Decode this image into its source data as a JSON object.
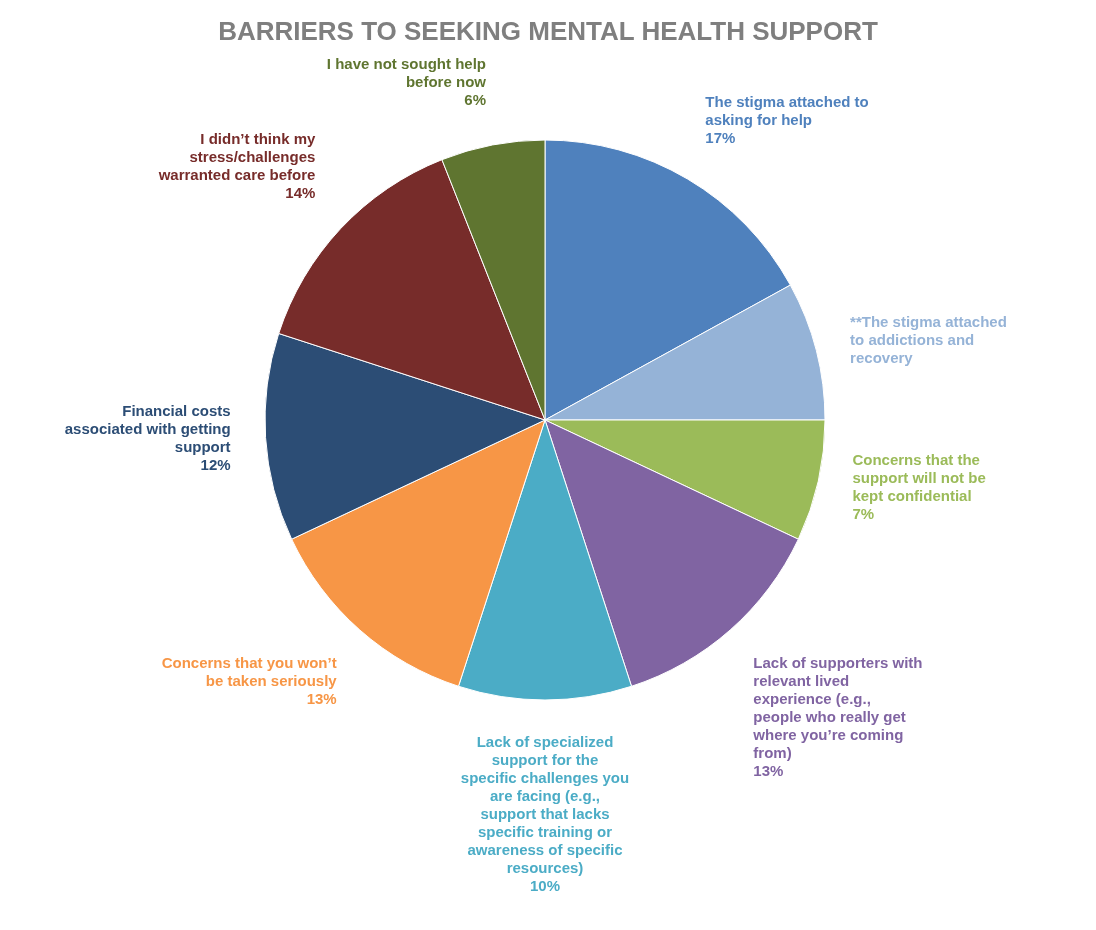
{
  "chart_data": {
    "type": "pie",
    "title": "BARRIERS TO SEEKING MENTAL HEALTH SUPPORT",
    "categories": [
      "The stigma attached to asking for help",
      "**The stigma attached to addictions and recovery",
      "Concerns that the support will not be kept confidential",
      "Lack of supporters with relevant lived experience (e.g., people who really get where you’re coming from)",
      "Lack of specialized support for the specific challenges you are facing (e.g., support that lacks specific training or awareness of specific resources)",
      "Concerns that you won’t be taken seriously",
      "Financial costs associated with getting support",
      "I didn’t think my stress/challenges warranted care before",
      "I have not sought help before now"
    ],
    "values": [
      17,
      8,
      7,
      13,
      10,
      13,
      12,
      14,
      6
    ],
    "value_labels": [
      "17%",
      null,
      "7%",
      "13%",
      "10%",
      "13%",
      "12%",
      "14%",
      "6%"
    ],
    "colors": [
      "#4f81bd",
      "#95b3d7",
      "#9bbb59",
      "#8064a2",
      "#4bacc6",
      "#f79646",
      "#2c4d75",
      "#772c2a",
      "#5f7530"
    ]
  }
}
